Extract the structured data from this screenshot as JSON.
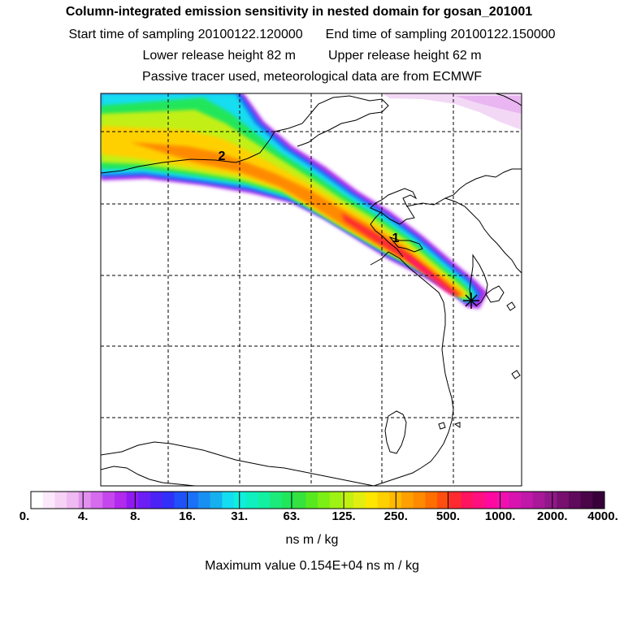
{
  "header": {
    "title": "Column-integrated emission sensitivity in nested domain for gosan_201001",
    "start_label": "Start time of sampling 20100122.120000",
    "end_label": "End time of sampling 20100122.150000",
    "lower_label": "Lower release height   82 m",
    "upper_label": "Upper release height   62 m",
    "tracer_label": "Passive tracer used, meteorological data are from ECMWF"
  },
  "map": {
    "markers": [
      {
        "id": "1",
        "label": "1"
      },
      {
        "id": "2",
        "label": "2"
      }
    ],
    "receptor_symbol": "star-marker-icon"
  },
  "colorbar": {
    "tick_labels": [
      "0.",
      "4.",
      "8.",
      "16.",
      "31.",
      "63.",
      "125.",
      "250.",
      "500.",
      "1000.",
      "2000.",
      "4000."
    ],
    "colors": [
      "#ffffff",
      "#fbe9fb",
      "#f6d2f6",
      "#efb9f2",
      "#e290ef",
      "#d66bee",
      "#c646ee",
      "#b12aee",
      "#8f1bf0",
      "#6c1ff4",
      "#4c23f7",
      "#3030f8",
      "#1f50f8",
      "#1a70f6",
      "#1890f3",
      "#17b0ef",
      "#14ddf0",
      "#10eedc",
      "#0ef0c0",
      "#12f0a2",
      "#1cea7a",
      "#20e65a",
      "#36e23e",
      "#58e820",
      "#7cef16",
      "#9ef214",
      "#c2f012",
      "#e2ee10",
      "#ffe600",
      "#ffd000",
      "#ffba00",
      "#ffa000",
      "#ff8a00",
      "#ff6e00",
      "#ff4e10",
      "#ff2a30",
      "#ff1460",
      "#ff1080",
      "#ff0aa0",
      "#f010b0",
      "#d814b0",
      "#c018a8",
      "#a81898",
      "#901888",
      "#781070",
      "#600a5c",
      "#4a0648",
      "#38003a"
    ],
    "units": "ns m / kg",
    "max_value": "Maximum value  0.154E+04 ns m / kg"
  }
}
